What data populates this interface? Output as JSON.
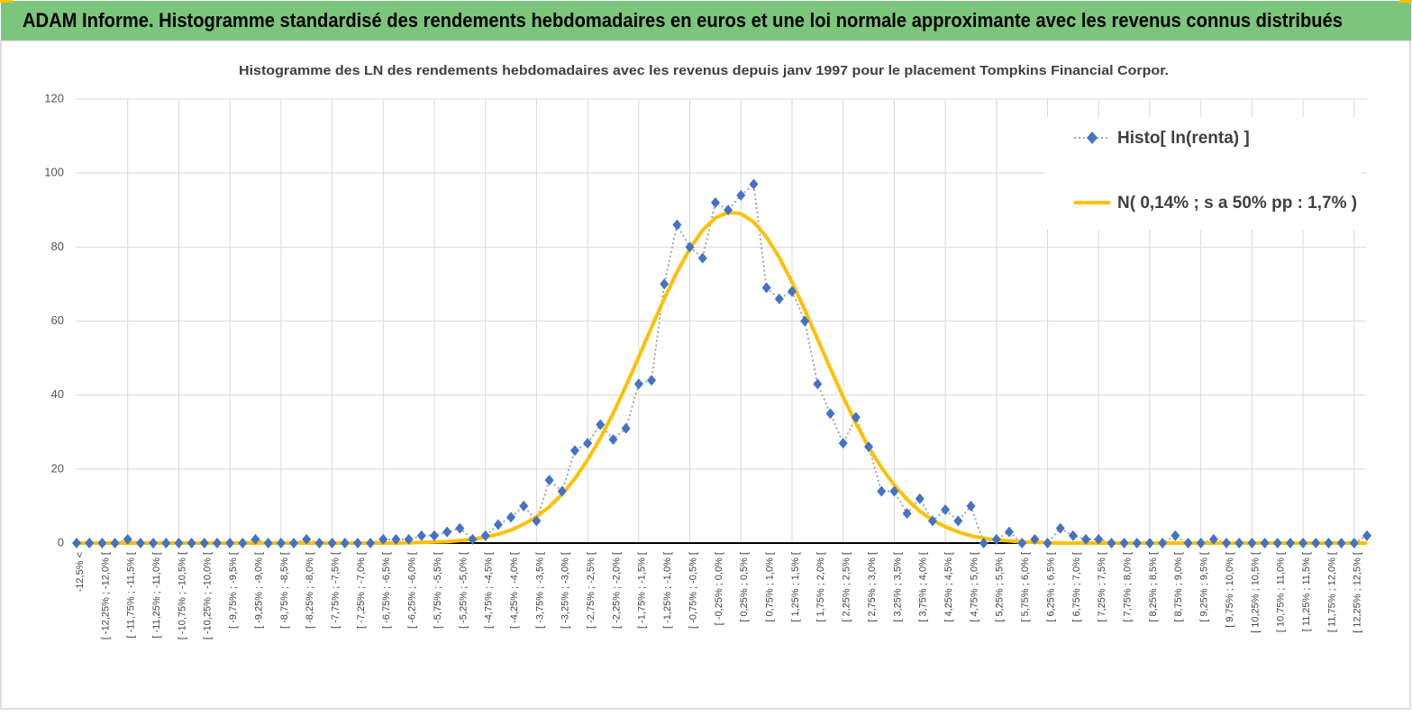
{
  "header": {
    "title": "ADAM Informe. Histogramme standardisé des rendements hebdomadaires en euros et une loi normale approximante avec les revenus connus distribués"
  },
  "chart_data": {
    "type": "line",
    "title": "Histogramme des LN des rendements hebdomadaires avec les revenus depuis janv 1997 pour le placement Tompkins Financial Corpor.",
    "categories": [
      "-12,5% <",
      null,
      "[ -12,25% ; -12,0% [",
      null,
      "[ -11,75% ; -11,5% [",
      null,
      "[ -11,25% ; -11,0% [",
      null,
      "[ -10,75% ; -10,5% [",
      null,
      "[ -10,25% ; -10,0% [",
      null,
      "[ -9,75% ; -9,5% [",
      null,
      "[ -9,25% ; -9,0% [",
      null,
      "[ -8,75% ; -8,5% [",
      null,
      "[ -8,25% ; -8,0% [",
      null,
      "[ -7,75% ; -7,5% [",
      null,
      "[ -7,25% ; -7,0% [",
      null,
      "[ -6,75% ; -6,5% [",
      null,
      "[ -6,25% ; -6,0% [",
      null,
      "[ -5,75% ; -5,5% [",
      null,
      "[ -5,25% ; -5,0% [",
      null,
      "[ -4,75% ; -4,5% [",
      null,
      "[ -4,25% ; -4,0% [",
      null,
      "[ -3,75% ; -3,5% [",
      null,
      "[ -3,25% ; -3,0% [",
      null,
      "[ -2,75% ; -2,5% [",
      null,
      "[ -2,25% ; -2,0% [",
      null,
      "[ -1,75% ; -1,5% [",
      null,
      "[ -1,25% ; -1,0% [",
      null,
      "[ -0,75% ; -0,5% [",
      null,
      "[ -0,25% ; 0,0% [",
      null,
      "[ 0,25% ; 0,5% [",
      null,
      "[ 0,75% ; 1,0% [",
      null,
      "[ 1,25% ; 1,5% [",
      null,
      "[ 1,75% ; 2,0% [",
      null,
      "[ 2,25% ; 2,5% [",
      null,
      "[ 2,75% ; 3,0% [",
      null,
      "[ 3,25% ; 3,5% [",
      null,
      "[ 3,75% ; 4,0% [",
      null,
      "[ 4,25% ; 4,5% [",
      null,
      "[ 4,75% ; 5,0% [",
      null,
      "[ 5,25% ; 5,5% [",
      null,
      "[ 5,75% ; 6,0% [",
      null,
      "[ 6,25% ; 6,5% [",
      null,
      "[ 6,75% ; 7,0% [",
      null,
      "[ 7,25% ; 7,5% [",
      null,
      "[ 7,75% ; 8,0% [",
      null,
      "[ 8,25% ; 8,5% [",
      null,
      "[ 8,75% ; 9,0% [",
      null,
      "[ 9,25% ; 9,5% [",
      null,
      "[ 9,75% ; 10,0% [",
      null,
      "[ 10,25% ; 10,5% [",
      null,
      "[ 10,75% ; 11,0% [",
      null,
      "[ 11,25% ; 11,5% [",
      null,
      "[ 11,75% ; 12,0% [",
      null,
      "[ 12,25% ; 12,5% [",
      null
    ],
    "series": [
      {
        "name": "Histo[ ln(renta) ]",
        "color": "#4472c4",
        "values": [
          0,
          0,
          0,
          0,
          1,
          0,
          0,
          0,
          0,
          0,
          0,
          0,
          0,
          0,
          1,
          0,
          0,
          0,
          1,
          0,
          0,
          0,
          0,
          0,
          1,
          1,
          1,
          2,
          2,
          3,
          4,
          1,
          2,
          5,
          7,
          10,
          6,
          17,
          14,
          25,
          27,
          32,
          28,
          31,
          43,
          44,
          70,
          86,
          80,
          77,
          92,
          90,
          94,
          97,
          69,
          66,
          68,
          60,
          43,
          35,
          27,
          34,
          26,
          14,
          14,
          8,
          12,
          6,
          9,
          6,
          10,
          0,
          1,
          3,
          0,
          1,
          0,
          4,
          2,
          1,
          1,
          0,
          0,
          0,
          0,
          0,
          2,
          0,
          0,
          1,
          0,
          0,
          0,
          0,
          0,
          0,
          0,
          0,
          0,
          0,
          0,
          2
        ]
      },
      {
        "name": "N( 0,14% ; s a 50% pp : 1,7% )",
        "color": "#ffc000",
        "values": [
          0,
          0,
          0,
          0,
          0,
          0,
          0,
          0,
          0,
          0,
          0,
          0,
          0,
          0,
          0,
          0,
          0,
          0,
          0,
          0,
          0,
          0,
          0,
          0,
          0,
          0,
          0.1,
          0.2,
          0.3,
          0.4,
          0.7,
          1.0,
          1.6,
          2.4,
          3.5,
          5.1,
          7.1,
          9.8,
          13.2,
          17.4,
          22.5,
          28.4,
          35.1,
          42.5,
          50.3,
          58.3,
          66.1,
          73.3,
          79.6,
          84.5,
          87.9,
          89.4,
          89.0,
          86.8,
          82.7,
          77.2,
          70.5,
          63.0,
          55.1,
          47.2,
          39.5,
          32.4,
          25.9,
          20.4,
          15.7,
          11.8,
          8.6,
          6.2,
          4.4,
          3.0,
          2.0,
          1.3,
          0.9,
          0.6,
          0.3,
          0.2,
          0.1,
          0,
          0,
          0,
          0,
          0,
          0,
          0,
          0,
          0,
          0,
          0,
          0,
          0,
          0,
          0,
          0,
          0,
          0,
          0,
          0,
          0,
          0,
          0,
          0,
          0
        ]
      }
    ],
    "ylim": [
      0,
      120
    ],
    "yticks": [
      0,
      20,
      40,
      60,
      80,
      100,
      120
    ],
    "grid": true,
    "legend": "top-right"
  }
}
